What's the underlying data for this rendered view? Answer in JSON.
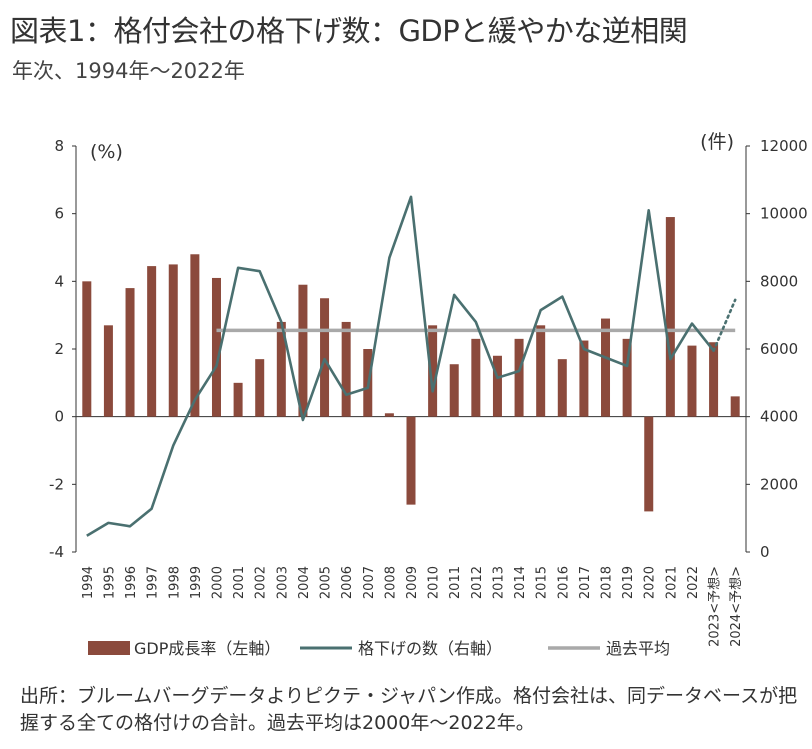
{
  "header": {
    "title": "図表1：格付会社の格下げ数：GDPと緩やかな逆相関",
    "subtitle": "年次、1994年～2022年"
  },
  "footer": {
    "note": "出所：ブルームバーグデータよりピクテ・ジャパン作成。格付会社は、同データベースが把握する全ての格付けの合計。過去平均は2000年～2022年。"
  },
  "chart_data": {
    "type": "bar",
    "categories": [
      "1994",
      "1995",
      "1996",
      "1997",
      "1998",
      "1999",
      "2000",
      "2001",
      "2002",
      "2003",
      "2004",
      "2005",
      "2006",
      "2007",
      "2008",
      "2009",
      "2010",
      "2011",
      "2012",
      "2013",
      "2014",
      "2015",
      "2016",
      "2017",
      "2018",
      "2019",
      "2020",
      "2021",
      "2022",
      "2023<予想>",
      "2024<予想>"
    ],
    "y_left": {
      "unit": "(%)",
      "ylim": [
        -4,
        8
      ],
      "ticks": [
        -4,
        -2,
        0,
        2,
        4,
        6,
        8
      ]
    },
    "y_right": {
      "unit": "(件)",
      "ylim": [
        0,
        12000
      ],
      "ticks": [
        0,
        2000,
        4000,
        6000,
        8000,
        10000,
        12000
      ]
    },
    "series": [
      {
        "name": "GDP成長率（左軸）",
        "type": "bar",
        "axis": "left",
        "color": "#8b4a3c",
        "values": [
          4.0,
          2.7,
          3.8,
          4.45,
          4.5,
          4.8,
          4.1,
          1.0,
          1.7,
          2.8,
          3.9,
          3.5,
          2.8,
          2.0,
          0.1,
          -2.6,
          2.7,
          1.55,
          2.3,
          1.8,
          2.3,
          2.7,
          1.7,
          2.25,
          2.9,
          2.3,
          -2.8,
          5.9,
          2.1,
          2.2,
          0.6
        ]
      },
      {
        "name": "格下げの数（右軸）",
        "type": "line",
        "axis": "right",
        "color": "#4a7070",
        "values": [
          480,
          860,
          760,
          1280,
          3150,
          4500,
          5500,
          8400,
          8300,
          6800,
          3900,
          5700,
          4650,
          4850,
          8700,
          10500,
          4750,
          7600,
          6800,
          5150,
          5350,
          7150,
          7550,
          6000,
          5750,
          5500,
          10100,
          5700,
          6750,
          5950,
          null
        ],
        "projection": [
          null,
          null,
          null,
          null,
          null,
          null,
          null,
          null,
          null,
          null,
          null,
          null,
          null,
          null,
          null,
          null,
          null,
          null,
          null,
          null,
          null,
          null,
          null,
          null,
          null,
          null,
          null,
          null,
          null,
          5950,
          7450
        ]
      },
      {
        "name": "過去平均",
        "type": "line",
        "axis": "right",
        "color": "#a9a9a9",
        "values": [
          null,
          null,
          null,
          null,
          null,
          null,
          6550,
          6550,
          6550,
          6550,
          6550,
          6550,
          6550,
          6550,
          6550,
          6550,
          6550,
          6550,
          6550,
          6550,
          6550,
          6550,
          6550,
          6550,
          6550,
          6550,
          6550,
          6550,
          6550,
          6550,
          6550
        ]
      }
    ]
  }
}
